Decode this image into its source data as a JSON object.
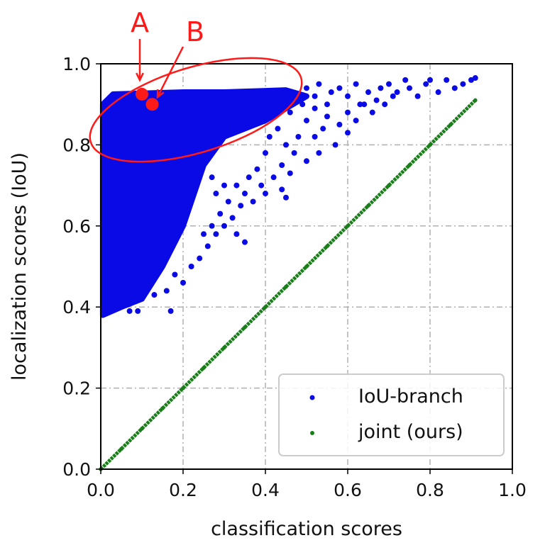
{
  "chart_data": {
    "type": "scatter",
    "xlabel": "classification scores",
    "ylabel": "localization scores (IoU)",
    "xlim": [
      0,
      1.0
    ],
    "ylim": [
      0,
      1.0
    ],
    "xticks": [
      "0.0",
      "0.2",
      "0.4",
      "0.6",
      "0.8",
      "1.0"
    ],
    "yticks": [
      "0.0",
      "0.2",
      "0.4",
      "0.6",
      "0.8",
      "1.0"
    ],
    "grid": true,
    "legend_placement": "lower-right",
    "series": [
      {
        "name": "IoU-branch",
        "color": "#0a0ae6",
        "dense_region": [
          [
            0.005,
            0.38
          ],
          [
            0.005,
            0.9
          ],
          [
            0.03,
            0.925
          ],
          [
            0.2,
            0.93
          ],
          [
            0.3,
            0.93
          ],
          [
            0.45,
            0.935
          ],
          [
            0.5,
            0.92
          ],
          [
            0.4,
            0.86
          ],
          [
            0.3,
            0.82
          ],
          [
            0.25,
            0.75
          ],
          [
            0.2,
            0.6
          ],
          [
            0.15,
            0.5
          ],
          [
            0.1,
            0.42
          ],
          [
            0.05,
            0.4
          ]
        ],
        "points": [
          [
            0.5,
            0.94
          ],
          [
            0.52,
            0.92
          ],
          [
            0.53,
            0.95
          ],
          [
            0.55,
            0.9
          ],
          [
            0.56,
            0.93
          ],
          [
            0.58,
            0.94
          ],
          [
            0.6,
            0.92
          ],
          [
            0.62,
            0.95
          ],
          [
            0.63,
            0.9
          ],
          [
            0.65,
            0.93
          ],
          [
            0.66,
            0.88
          ],
          [
            0.68,
            0.94
          ],
          [
            0.7,
            0.95
          ],
          [
            0.72,
            0.93
          ],
          [
            0.74,
            0.96
          ],
          [
            0.75,
            0.94
          ],
          [
            0.77,
            0.92
          ],
          [
            0.79,
            0.95
          ],
          [
            0.8,
            0.96
          ],
          [
            0.82,
            0.93
          ],
          [
            0.84,
            0.96
          ],
          [
            0.86,
            0.94
          ],
          [
            0.88,
            0.95
          ],
          [
            0.9,
            0.96
          ],
          [
            0.91,
            0.965
          ],
          [
            0.55,
            0.87
          ],
          [
            0.58,
            0.85
          ],
          [
            0.6,
            0.88
          ],
          [
            0.64,
            0.9
          ],
          [
            0.67,
            0.91
          ],
          [
            0.71,
            0.92
          ],
          [
            0.69,
            0.9
          ],
          [
            0.52,
            0.89
          ],
          [
            0.54,
            0.84
          ],
          [
            0.5,
            0.86
          ],
          [
            0.48,
            0.82
          ],
          [
            0.45,
            0.8
          ],
          [
            0.47,
            0.78
          ],
          [
            0.44,
            0.75
          ],
          [
            0.42,
            0.72
          ],
          [
            0.4,
            0.78
          ],
          [
            0.38,
            0.74
          ],
          [
            0.39,
            0.7
          ],
          [
            0.36,
            0.72
          ],
          [
            0.35,
            0.68
          ],
          [
            0.33,
            0.7
          ],
          [
            0.34,
            0.65
          ],
          [
            0.32,
            0.62
          ],
          [
            0.31,
            0.66
          ],
          [
            0.3,
            0.6
          ],
          [
            0.35,
            0.56
          ],
          [
            0.33,
            0.58
          ],
          [
            0.29,
            0.63
          ],
          [
            0.28,
            0.58
          ],
          [
            0.27,
            0.6
          ],
          [
            0.26,
            0.55
          ],
          [
            0.25,
            0.58
          ],
          [
            0.24,
            0.52
          ],
          [
            0.22,
            0.5
          ],
          [
            0.2,
            0.46
          ],
          [
            0.18,
            0.48
          ],
          [
            0.17,
            0.39
          ],
          [
            0.09,
            0.39
          ],
          [
            0.07,
            0.39
          ],
          [
            0.13,
            0.43
          ],
          [
            0.16,
            0.44
          ],
          [
            0.43,
            0.84
          ],
          [
            0.41,
            0.82
          ],
          [
            0.46,
            0.88
          ],
          [
            0.49,
            0.9
          ],
          [
            0.6,
            0.83
          ],
          [
            0.62,
            0.86
          ],
          [
            0.57,
            0.8
          ],
          [
            0.53,
            0.78
          ],
          [
            0.5,
            0.76
          ],
          [
            0.52,
            0.82
          ],
          [
            0.44,
            0.69
          ],
          [
            0.46,
            0.73
          ],
          [
            0.37,
            0.66
          ],
          [
            0.4,
            0.68
          ],
          [
            0.45,
            0.67
          ],
          [
            0.3,
            0.7
          ],
          [
            0.28,
            0.68
          ],
          [
            0.27,
            0.72
          ]
        ]
      },
      {
        "name": "joint (ours)",
        "color": "#1a7f1a",
        "points": [
          [
            0,
            0
          ],
          [
            0.05,
            0.05
          ],
          [
            0.1,
            0.1
          ],
          [
            0.15,
            0.15
          ],
          [
            0.2,
            0.2
          ],
          [
            0.25,
            0.25
          ],
          [
            0.3,
            0.3
          ],
          [
            0.35,
            0.35
          ],
          [
            0.4,
            0.4
          ],
          [
            0.45,
            0.45
          ],
          [
            0.5,
            0.5
          ],
          [
            0.55,
            0.55
          ],
          [
            0.6,
            0.6
          ],
          [
            0.65,
            0.65
          ],
          [
            0.7,
            0.7
          ],
          [
            0.75,
            0.75
          ],
          [
            0.8,
            0.8
          ],
          [
            0.85,
            0.85
          ],
          [
            0.91,
            0.91
          ]
        ]
      }
    ],
    "annotations": [
      {
        "label": "A",
        "x": 0.1,
        "y": 0.925,
        "color": "#ff1a1a"
      },
      {
        "label": "B",
        "x": 0.125,
        "y": 0.9,
        "color": "#ff1a1a"
      }
    ]
  }
}
